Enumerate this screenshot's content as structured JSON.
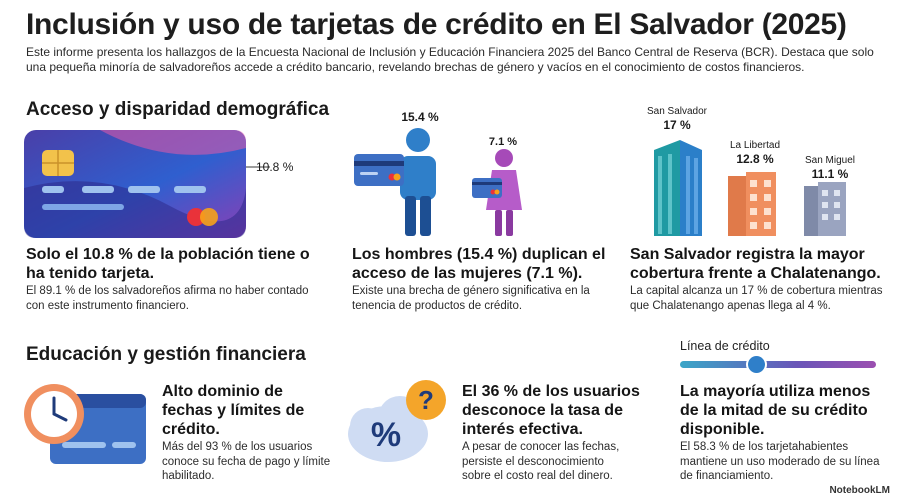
{
  "title": "Inclusión y uso de tarjetas de crédito en El Salvador (2025)",
  "intro": "Este informe presenta los hallazgos de la Encuesta Nacional de Inclusión y Educación Financiera 2025 del Banco Central de Reserva (BCR). Destaca que solo una pequeña minoría de salvadoreños accede a crédito bancario, revelando brechas de género y vacíos en el conocimiento de costos financieros.",
  "section1": {
    "title": "Acceso y disparidad demográfica",
    "card": {
      "value_label": "10.8 %",
      "heading": "Solo el 10.8 % de la población tiene o ha tenido tarjeta.",
      "body": "El 89.1 % de los salvadoreños afirma no haber contado con este instrumento financiero."
    },
    "gender": {
      "men_label": "15.4 %",
      "women_label": "7.1 %",
      "heading": "Los hombres (15.4 %) duplican el acceso de las mujeres (7.1 %).",
      "body": "Existe una brecha de género significativa en la tenencia de productos de crédito."
    },
    "regions": {
      "items": [
        {
          "name": "San Salvador",
          "value": "17 %"
        },
        {
          "name": "La Libertad",
          "value": "12.8 %"
        },
        {
          "name": "San Miguel",
          "value": "11.1 %"
        }
      ],
      "heading": "San Salvador registra la mayor cobertura frente a Chalatenango.",
      "body": "La capital alcanza un 17 % de cobertura mientras que Chalatenango apenas llega al 4 %."
    }
  },
  "section2": {
    "title": "Educación y gestión financiera",
    "dates": {
      "heading": "Alto dominio de fechas y límites de crédito.",
      "body": "Más del 93 % de los usuarios conoce su fecha de pago y límite habilitado."
    },
    "rate": {
      "heading": "El 36 % de los usuarios desconoce la tasa de interés efectiva.",
      "body": "A pesar de conocer las fechas, persiste el desconocimiento sobre el costo real del dinero."
    },
    "usage": {
      "slider_label": "Línea de crédito",
      "slider_fraction": 0.39,
      "heading": "La mayoría utiliza menos de la mitad de su crédito disponible.",
      "body": "El 58.3 % de los tarjetahabientes mantiene un uso moderado de su línea de financiamiento."
    }
  },
  "brand": "NotebookLM"
}
